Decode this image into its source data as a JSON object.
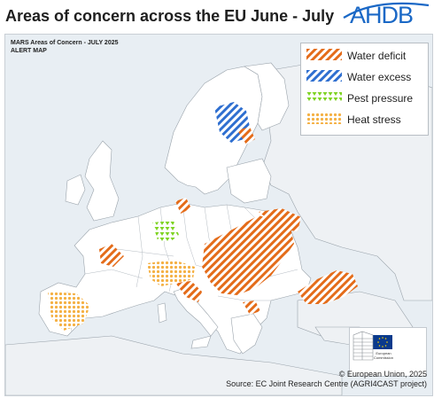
{
  "header": {
    "title": "Areas of concern across the EU June - July",
    "logo_text": "AHDB"
  },
  "map": {
    "title_line1": "MARS Areas of Concern - JULY 2025",
    "title_line2": "ALERT MAP",
    "legend": [
      {
        "label": "Water deficit",
        "pattern": "diagonal-hatch",
        "color": "#e46c1a"
      },
      {
        "label": "Water excess",
        "pattern": "diagonal-hatch",
        "color": "#2f6fd0"
      },
      {
        "label": "Pest pressure",
        "pattern": "triangles",
        "color": "#7ed321"
      },
      {
        "label": "Heat stress",
        "pattern": "dots",
        "color": "#f5b043"
      }
    ],
    "colors": {
      "sea": "#e8eef3",
      "land": "#ffffff",
      "border": "#9aa3ab",
      "non_eu_land": "#eef1f4"
    },
    "ec_logo_caption": "European Commission"
  },
  "credits": {
    "copyright": "© European Union, 2025",
    "source": "Source: EC Joint Research Centre (AGRI4CAST project)"
  }
}
